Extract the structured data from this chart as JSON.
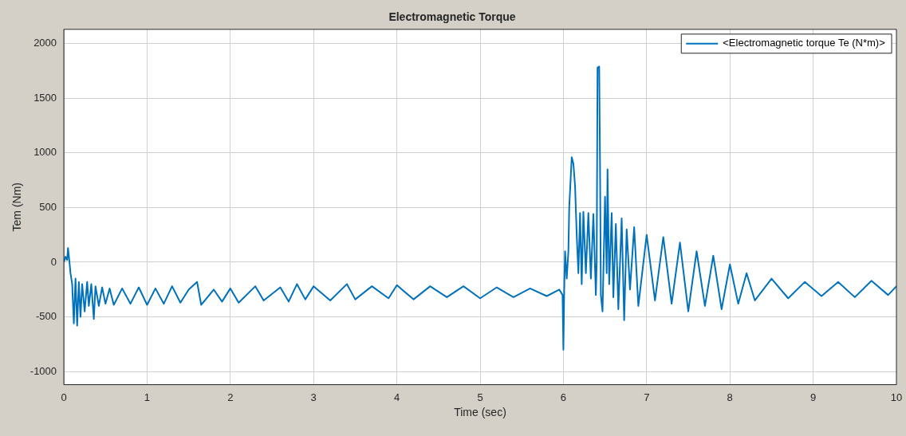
{
  "chart_data": {
    "type": "line",
    "title": "Electromagnetic Torque",
    "xlabel": "Time (sec)",
    "ylabel": "Tem (Nm)",
    "xlim": [
      0,
      10
    ],
    "xticks": [
      0,
      1,
      2,
      3,
      4,
      5,
      6,
      7,
      8,
      9,
      10
    ],
    "ylim": [
      -1120,
      2130
    ],
    "yticks": [
      -1000,
      -500,
      0,
      500,
      1000,
      1500,
      2000
    ],
    "grid": true,
    "legend": "top right",
    "marker": "none",
    "line_style": "solid",
    "series": [
      {
        "name": "<Electromagnetic torque Te (N*m)>",
        "color": "#0072bd",
        "x": [
          0,
          0.02,
          0.04,
          0.05,
          0.06,
          0.08,
          0.1,
          0.12,
          0.14,
          0.16,
          0.18,
          0.2,
          0.22,
          0.25,
          0.28,
          0.3,
          0.33,
          0.36,
          0.38,
          0.42,
          0.46,
          0.5,
          0.55,
          0.6,
          0.7,
          0.8,
          0.9,
          1.0,
          1.1,
          1.2,
          1.3,
          1.4,
          1.5,
          1.6,
          1.65,
          1.8,
          1.9,
          2.0,
          2.1,
          2.3,
          2.4,
          2.6,
          2.7,
          2.8,
          2.9,
          3.0,
          3.2,
          3.4,
          3.5,
          3.7,
          3.9,
          4.0,
          4.2,
          4.4,
          4.6,
          4.8,
          5.0,
          5.2,
          5.4,
          5.6,
          5.8,
          5.95,
          5.99,
          6.0,
          6.01,
          6.02,
          6.04,
          6.06,
          6.07,
          6.1,
          6.12,
          6.14,
          6.16,
          6.18,
          6.2,
          6.22,
          6.24,
          6.27,
          6.3,
          6.33,
          6.36,
          6.39,
          6.4,
          6.41,
          6.43,
          6.44,
          6.45,
          6.47,
          6.5,
          6.52,
          6.53,
          6.55,
          6.58,
          6.6,
          6.63,
          6.66,
          6.7,
          6.73,
          6.76,
          6.8,
          6.85,
          6.9,
          7.0,
          7.1,
          7.2,
          7.3,
          7.4,
          7.5,
          7.6,
          7.7,
          7.8,
          7.9,
          8.0,
          8.1,
          8.2,
          8.3,
          8.5,
          8.7,
          8.9,
          9.1,
          9.3,
          9.5,
          9.7,
          9.9,
          10
        ],
        "values": [
          0,
          50,
          20,
          130,
          60,
          -100,
          -200,
          -560,
          -150,
          -580,
          -180,
          -500,
          -200,
          -450,
          -180,
          -400,
          -200,
          -520,
          -220,
          -400,
          -230,
          -380,
          -240,
          -390,
          -240,
          -380,
          -230,
          -390,
          -240,
          -380,
          -220,
          -370,
          -250,
          -180,
          -390,
          -250,
          -360,
          -240,
          -370,
          -220,
          -350,
          -230,
          -360,
          -200,
          -340,
          -220,
          -350,
          -200,
          -340,
          -220,
          -330,
          -210,
          -340,
          -220,
          -320,
          -220,
          -330,
          -230,
          -320,
          -240,
          -310,
          -250,
          -300,
          -800,
          -250,
          100,
          -150,
          100,
          500,
          960,
          900,
          700,
          250,
          -100,
          450,
          -200,
          460,
          -100,
          450,
          -150,
          440,
          -300,
          0,
          1780,
          1790,
          900,
          -300,
          -450,
          600,
          -100,
          850,
          -200,
          450,
          -320,
          350,
          -430,
          400,
          -530,
          300,
          -250,
          320,
          -400,
          250,
          -350,
          230,
          -380,
          180,
          -450,
          100,
          -400,
          60,
          -430,
          -20,
          -380,
          -100,
          -350,
          -150,
          -330,
          -180,
          -310,
          -180,
          -320,
          -170,
          -300,
          -220
        ]
      }
    ]
  }
}
